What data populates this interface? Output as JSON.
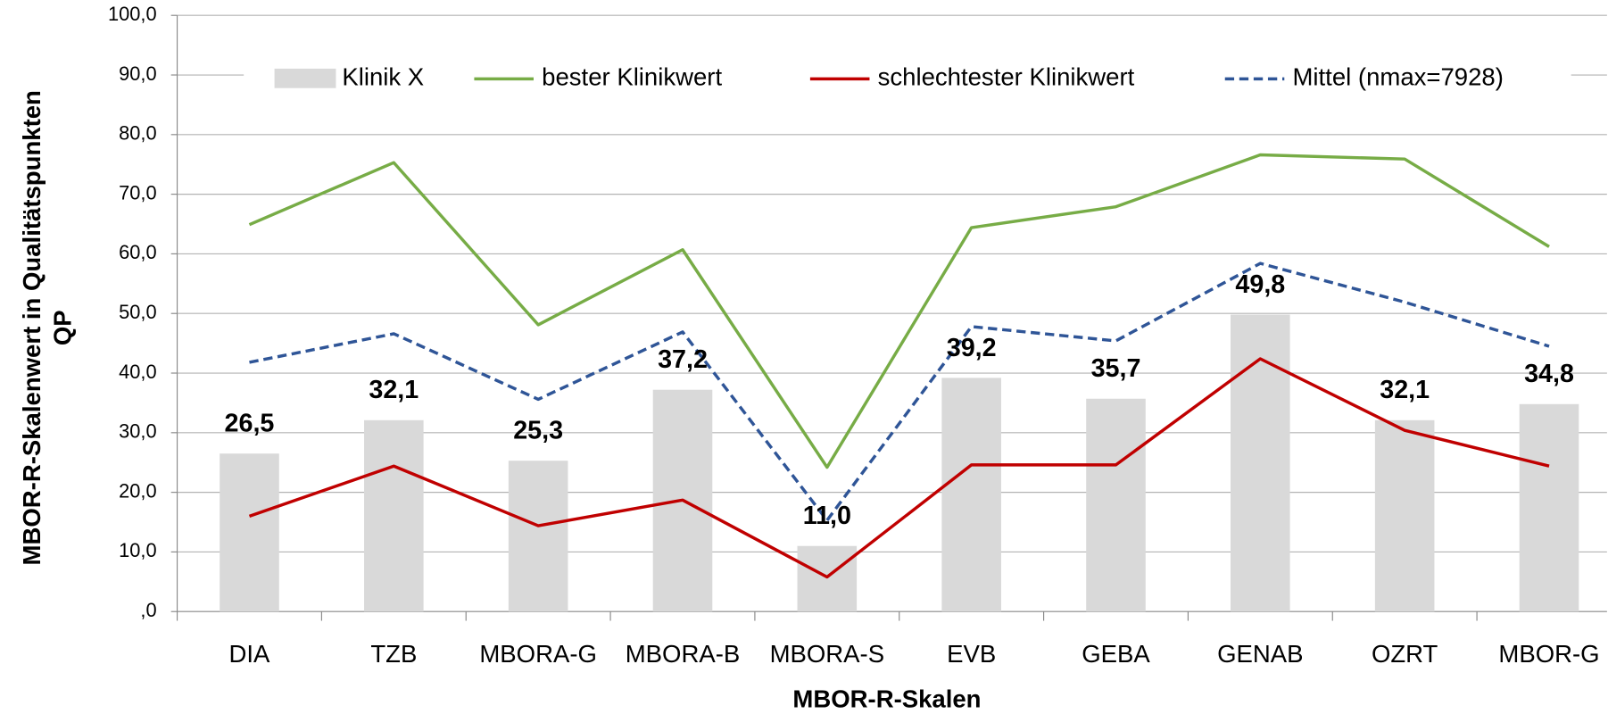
{
  "chart_data": {
    "type": "bar-line",
    "xlabel": "MBOR-R-Skalen",
    "ylabel": [
      "MBOR-R-Skalenwert in Qualitätspunkten",
      "QP"
    ],
    "categories": [
      "DIA",
      "TZB",
      "MBORA-G",
      "MBORA-B",
      "MBORA-S",
      "EVB",
      "GEBA",
      "GENAB",
      "OZRT",
      "MBOR-G"
    ],
    "series": [
      {
        "name": "Klinik X",
        "kind": "bar",
        "color": "#d9d9d9",
        "values": [
          26.5,
          32.1,
          25.3,
          37.2,
          11.0,
          39.2,
          35.7,
          49.8,
          32.1,
          34.8
        ],
        "value_labels": [
          "26,5",
          "32,1",
          "25,3",
          "37,2",
          "11,0",
          "39,2",
          "35,7",
          "49,8",
          "32,1",
          "34,8"
        ]
      },
      {
        "name": "bester Klinikwert",
        "kind": "line",
        "color": "#77ac46",
        "values": [
          64.9,
          75.3,
          48.1,
          60.7,
          24.2,
          64.4,
          67.9,
          76.6,
          75.9,
          61.2
        ]
      },
      {
        "name": "schlechtester Klinikwert",
        "kind": "line",
        "color": "#c00000",
        "values": [
          16.0,
          24.4,
          14.4,
          18.7,
          5.8,
          24.6,
          24.6,
          42.4,
          30.4,
          24.4
        ]
      },
      {
        "name": "Mittel (nmax=7928)",
        "kind": "line",
        "dashed": true,
        "color": "#2f5597",
        "values": [
          41.8,
          46.6,
          35.6,
          46.9,
          15.3,
          47.8,
          45.4,
          58.4,
          51.9,
          44.5
        ]
      }
    ],
    "value_label_color": "#1f3864",
    "ylim": [
      0,
      100
    ],
    "yticks": [
      {
        "value": 0,
        "label": ",0"
      },
      {
        "value": 10,
        "label": "10,0"
      },
      {
        "value": 20,
        "label": "20,0"
      },
      {
        "value": 30,
        "label": "30,0"
      },
      {
        "value": 40,
        "label": "40,0"
      },
      {
        "value": 50,
        "label": "50,0"
      },
      {
        "value": 60,
        "label": "60,0"
      },
      {
        "value": 70,
        "label": "70,0"
      },
      {
        "value": 80,
        "label": "80,0"
      },
      {
        "value": 90,
        "label": "90,0"
      },
      {
        "value": 100,
        "label": "100,0"
      }
    ],
    "grid": true,
    "legend": "top"
  }
}
